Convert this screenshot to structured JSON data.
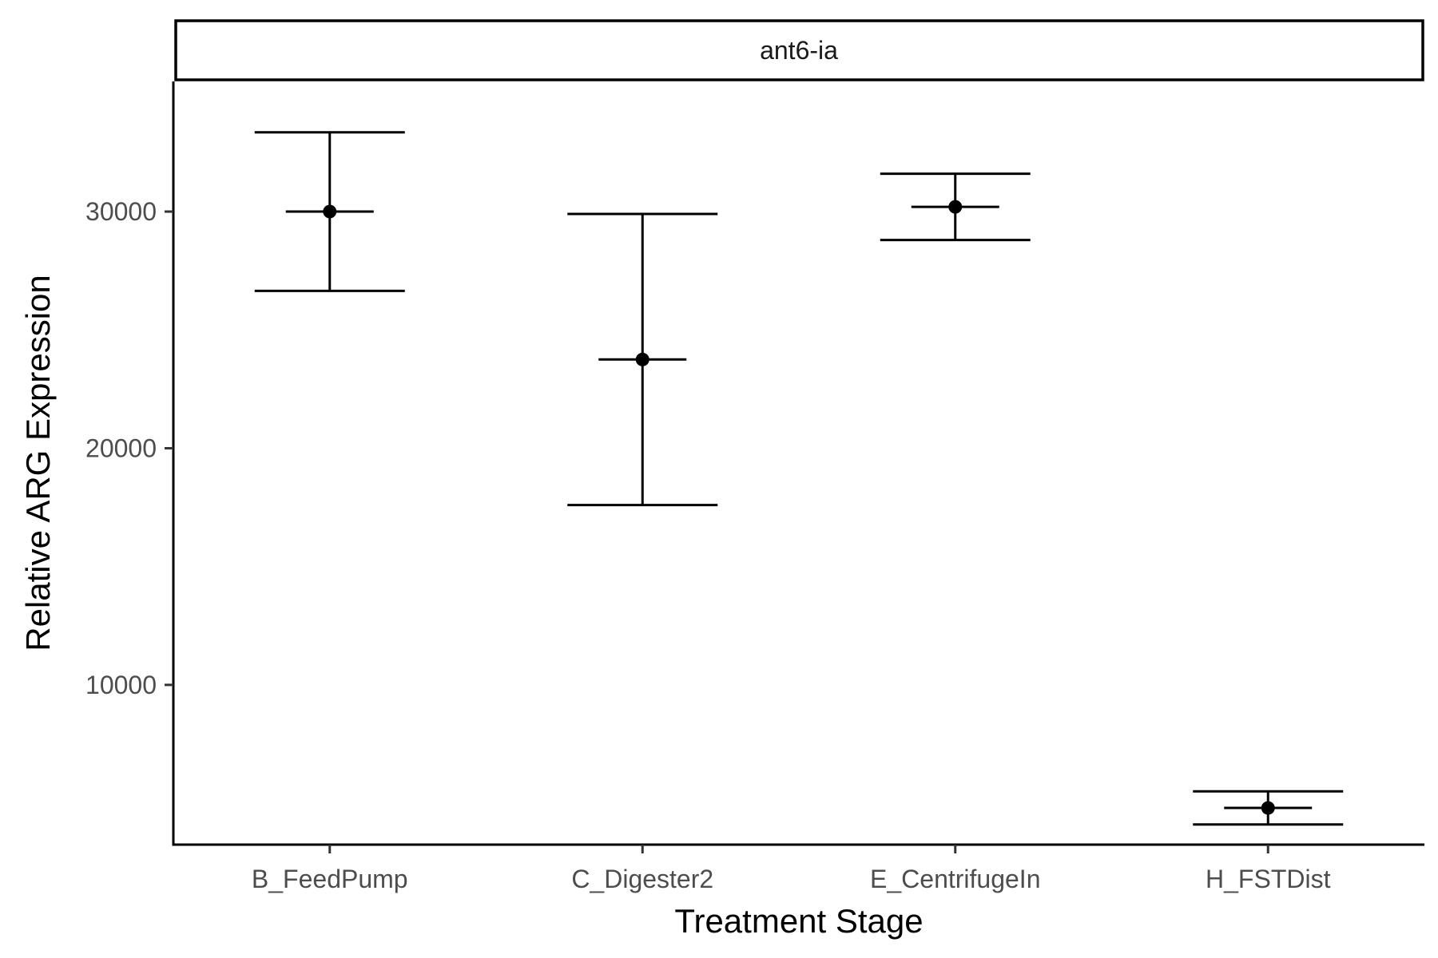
{
  "chart_data": {
    "type": "errorbar",
    "facet_label": "ant6-ia",
    "xlabel": "Treatment Stage",
    "ylabel": "Relative ARG Expression",
    "categories": [
      "B_FeedPump",
      "C_Digester2",
      "E_CentrifugeIn",
      "H_FSTDist"
    ],
    "series": [
      {
        "mean": [
          30000,
          23750,
          30200,
          4800
        ],
        "lower": [
          26650,
          17600,
          28800,
          4100
        ],
        "upper": [
          33350,
          29900,
          31600,
          5500
        ]
      }
    ],
    "y_ticks": [
      10000,
      20000,
      30000
    ],
    "y_tick_labels": [
      "10000",
      "20000",
      "30000"
    ],
    "ylim": [
      3250,
      35500
    ],
    "grid": false,
    "legend": "none",
    "colors": {
      "marks": "#000000",
      "axis": "#000000",
      "tick_text": "#4d4d4d"
    }
  }
}
